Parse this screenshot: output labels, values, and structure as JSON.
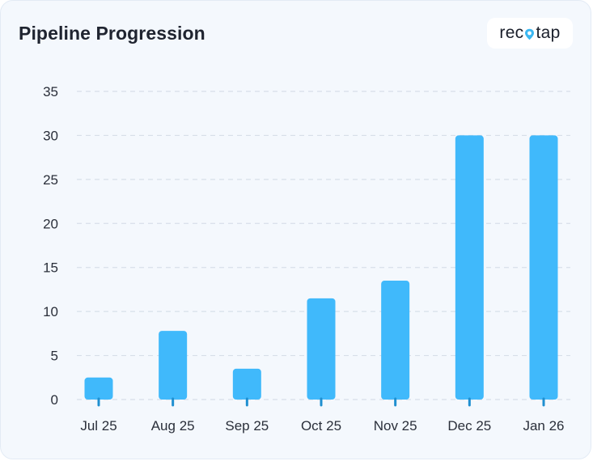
{
  "header": {
    "title": "Pipeline Progression"
  },
  "brand": {
    "logo_before": "rec",
    "logo_after": "tap",
    "icon": "location-pin-icon",
    "accent": "#3cb8f2"
  },
  "colors": {
    "bar": "#40b9fb",
    "tick_mark": "#1f8fd0",
    "grid": "#d7dfe9"
  },
  "chart_data": {
    "type": "bar",
    "title": "Pipeline Progression",
    "categories": [
      "Jul 25",
      "Aug 25",
      "Sep 25",
      "Oct 25",
      "Nov 25",
      "Dec 25",
      "Jan 26"
    ],
    "values": [
      2.5,
      7.8,
      3.5,
      11.5,
      13.5,
      30,
      30
    ],
    "yticks": [
      0,
      5,
      10,
      15,
      20,
      25,
      30,
      35
    ],
    "ylim": [
      0,
      35
    ],
    "grid": true,
    "xlabel": "",
    "ylabel": ""
  }
}
